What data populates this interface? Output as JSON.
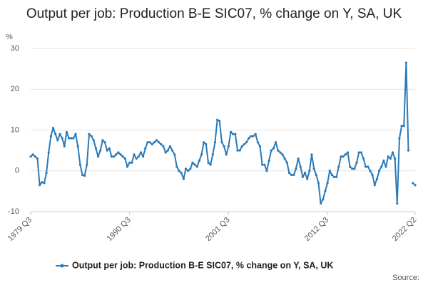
{
  "chart_data": {
    "type": "line",
    "title": "Output per job: Production B-E SIC07, % change on Y, SA, UK",
    "y_label": "%",
    "source": "Source:",
    "categories": [
      "1979 Q3",
      null,
      null,
      null,
      null,
      null,
      null,
      null,
      null,
      null,
      null,
      null,
      null,
      null,
      null,
      null,
      null,
      null,
      null,
      null,
      null,
      null,
      null,
      null,
      null,
      null,
      null,
      null,
      null,
      null,
      null,
      null,
      null,
      null,
      null,
      null,
      null,
      null,
      null,
      null,
      null,
      null,
      null,
      null,
      "1990 Q3",
      null,
      null,
      null,
      null,
      null,
      null,
      null,
      null,
      null,
      null,
      null,
      null,
      null,
      null,
      null,
      null,
      null,
      null,
      null,
      null,
      null,
      null,
      null,
      null,
      null,
      null,
      null,
      null,
      null,
      null,
      null,
      null,
      null,
      null,
      null,
      null,
      null,
      null,
      null,
      null,
      null,
      null,
      null,
      "2001 Q3",
      null,
      null,
      null,
      null,
      null,
      null,
      null,
      null,
      null,
      null,
      null,
      null,
      null,
      null,
      null,
      null,
      null,
      null,
      null,
      null,
      null,
      null,
      null,
      null,
      null,
      null,
      null,
      null,
      null,
      null,
      null,
      null,
      null,
      null,
      null,
      null,
      null,
      null,
      null,
      null,
      null,
      null,
      null,
      "2012 Q3",
      null,
      null,
      null,
      null,
      null,
      null,
      null,
      null,
      null,
      null,
      null,
      null,
      null,
      null,
      null,
      null,
      null,
      null,
      null,
      null,
      null,
      null,
      null,
      null,
      null,
      null,
      null,
      null,
      null,
      null,
      null,
      null,
      null,
      null,
      null,
      null,
      null,
      null,
      "2022 Q2"
    ],
    "series": [
      {
        "name": "Output per job: Production B-E SIC07, % change on Y, SA, UK",
        "color": "#2a7ab9",
        "values": [
          3.5,
          4,
          3.5,
          3,
          -3.5,
          -2.8,
          -3,
          -0.5,
          4.5,
          8.5,
          10.5,
          9,
          7.5,
          9,
          8,
          6,
          9.5,
          8,
          8,
          8,
          9,
          6,
          1.5,
          -1,
          -1.2,
          1.5,
          9,
          8.5,
          7.5,
          5.5,
          3.5,
          5,
          7.5,
          7,
          5,
          5.5,
          3.5,
          3.5,
          4,
          4.5,
          4,
          3.5,
          3,
          1,
          2,
          2,
          4,
          3,
          3.5,
          4.5,
          3.5,
          5.5,
          7,
          7,
          6.5,
          7,
          7.5,
          7,
          6.5,
          6,
          4.5,
          5,
          6,
          5,
          4,
          1,
          0,
          -0.5,
          -2,
          0.5,
          0,
          0.5,
          2,
          1.5,
          1,
          2.5,
          4,
          7,
          6.5,
          2,
          1.5,
          4,
          7,
          12.5,
          12.2,
          7,
          6,
          4,
          6,
          9.5,
          9,
          9,
          5,
          5,
          6,
          6.5,
          7,
          8,
          8.5,
          8.5,
          9,
          7,
          6,
          1.5,
          1.5,
          0,
          2.5,
          5,
          5.5,
          7,
          5,
          4.5,
          4,
          3,
          2,
          -0.5,
          -1,
          -1,
          0.5,
          3,
          1,
          -1.5,
          -0.5,
          -2,
          0,
          4,
          0.5,
          -1,
          -3,
          -8,
          -7,
          -5,
          -3,
          0,
          -1,
          -1.5,
          -1.5,
          1,
          3.5,
          3.5,
          4,
          4.5,
          1,
          0.5,
          0.5,
          2,
          4.5,
          4.5,
          3,
          1,
          1,
          0,
          -1,
          -3.5,
          -2,
          0,
          1,
          2.5,
          1,
          3.5,
          3,
          4.5,
          3,
          -8,
          8,
          11,
          11,
          26.5,
          5,
          null,
          -3,
          -3.5
        ]
      }
    ],
    "ylim": [
      -10,
      30
    ],
    "yticks": [
      -10,
      0,
      10,
      20,
      30
    ],
    "grid": true
  }
}
